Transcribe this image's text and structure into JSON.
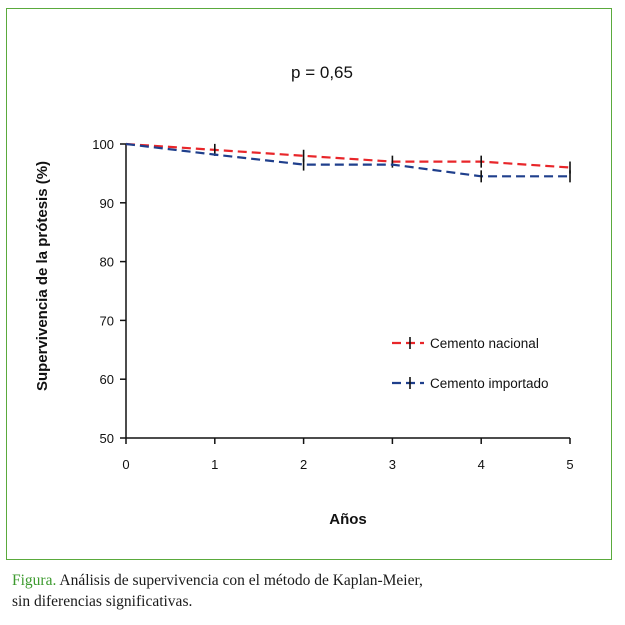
{
  "chart_data": {
    "type": "line",
    "annotation": "p = 0,65",
    "xlabel": "Años",
    "ylabel": "Supervivencia de la prótesis (%)",
    "xlim": [
      0,
      5
    ],
    "ylim": [
      50,
      100
    ],
    "x_ticks": [
      "0",
      "1",
      "2",
      "3",
      "4",
      "5"
    ],
    "y_ticks": [
      "50",
      "60",
      "70",
      "80",
      "90",
      "100"
    ],
    "grid": false,
    "legend_position": "right",
    "series": [
      {
        "name": "Cemento nacional",
        "color": "#e8262a",
        "line_style": "dashed",
        "steps": [
          [
            0,
            100
          ],
          [
            1,
            99
          ],
          [
            2,
            98
          ],
          [
            3,
            97
          ],
          [
            4,
            97
          ],
          [
            5,
            96
          ]
        ],
        "censor_marks": [
          [
            1,
            99
          ],
          [
            2,
            98
          ],
          [
            3,
            97
          ],
          [
            4,
            97
          ],
          [
            5,
            96
          ]
        ]
      },
      {
        "name": "Cemento importado",
        "color": "#1f3f8c",
        "line_style": "dashed",
        "steps": [
          [
            0,
            100
          ],
          [
            1,
            98.2
          ],
          [
            2,
            96.5
          ],
          [
            3,
            96.5
          ],
          [
            4,
            94.5
          ],
          [
            5,
            94.5
          ]
        ],
        "censor_marks": [
          [
            2,
            96.5
          ],
          [
            4,
            94.5
          ],
          [
            5,
            94.5
          ]
        ]
      }
    ]
  },
  "caption": {
    "label": "Figura.",
    "line1": "Análisis de supervivencia con el método de Kaplan-Meier,",
    "line2": "sin diferencias significativas."
  }
}
